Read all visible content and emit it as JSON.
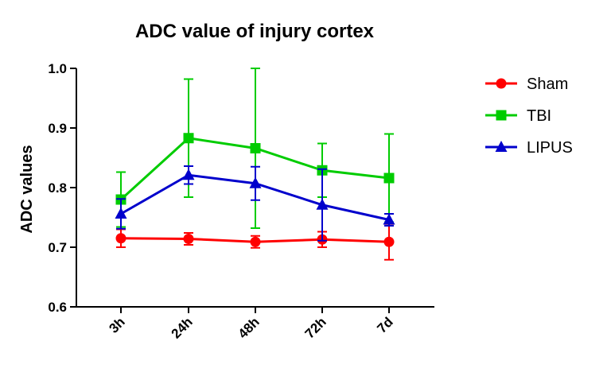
{
  "chart_data": {
    "type": "line",
    "title": "ADC value of injury cortex",
    "xlabel": "",
    "ylabel": "ADC values",
    "categories": [
      "3h",
      "24h",
      "48h",
      "72h",
      "7d"
    ],
    "ylim": [
      0.6,
      1.0
    ],
    "yticks": [
      "0.6",
      "0.7",
      "0.8",
      "0.9",
      "1.0"
    ],
    "legend_position": "top-right",
    "grid": false,
    "series": [
      {
        "name": "Sham",
        "color": "#ff0000",
        "marker": "circle",
        "values": [
          0.715,
          0.714,
          0.709,
          0.713,
          0.709
        ],
        "error": [
          0.015,
          0.01,
          0.01,
          0.013,
          0.03
        ]
      },
      {
        "name": "TBI",
        "color": "#00cc00",
        "marker": "square",
        "values": [
          0.78,
          0.883,
          0.866,
          0.829,
          0.816
        ],
        "error": [
          0.046,
          0.099,
          0.134,
          0.045,
          0.074
        ]
      },
      {
        "name": "LIPUS",
        "color": "#0000cc",
        "marker": "triangle",
        "values": [
          0.756,
          0.821,
          0.807,
          0.771,
          0.746
        ],
        "error": [
          0.025,
          0.015,
          0.028,
          0.06,
          0.01
        ]
      }
    ]
  }
}
